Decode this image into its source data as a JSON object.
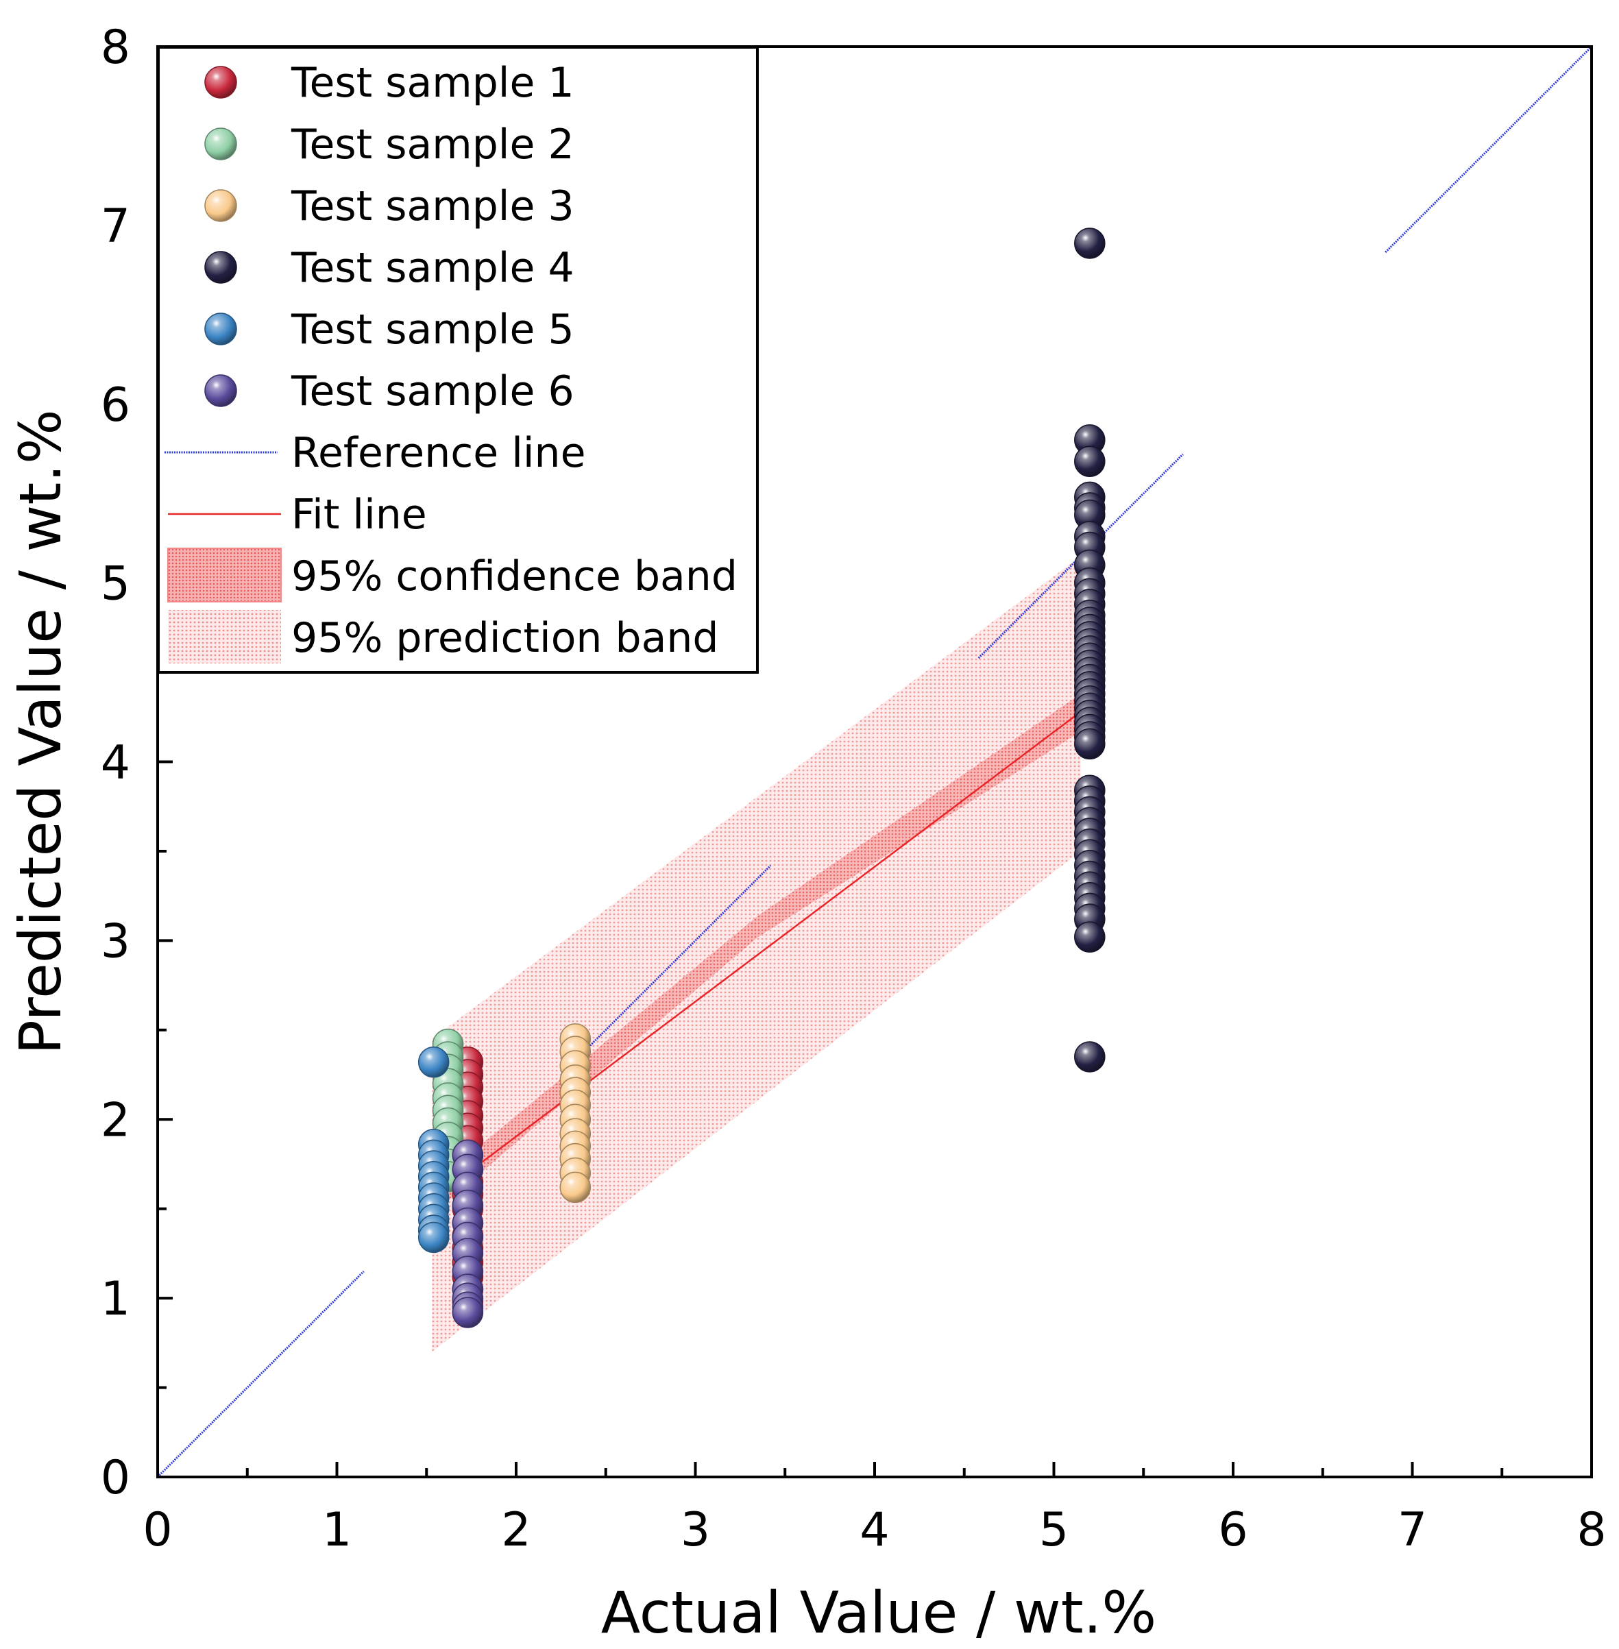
{
  "chart_data": {
    "type": "scatter",
    "title": "",
    "xlabel": "Actual Value / wt.%",
    "ylabel": "Predicted Value / wt.%",
    "xlim": [
      0,
      8
    ],
    "ylim": [
      0,
      8
    ],
    "xticks": [
      "0",
      "1",
      "2",
      "3",
      "4",
      "5",
      "6",
      "7",
      "8"
    ],
    "yticks": [
      "0",
      "1",
      "2",
      "3",
      "4",
      "5",
      "6",
      "7",
      "8"
    ],
    "grid": false,
    "legend_position": "top-left",
    "series": [
      {
        "name": "Test sample 1",
        "color": "#c8283c",
        "x": 1.73,
        "y": [
          2.32,
          2.25,
          2.18,
          2.1,
          2.02,
          1.95,
          1.88,
          1.8,
          1.72,
          1.65,
          1.58,
          1.5,
          1.42,
          1.35,
          1.28,
          1.2,
          1.12,
          1.05,
          0.98
        ]
      },
      {
        "name": "Test sample 2",
        "color": "#8fcfa6",
        "x": 1.62,
        "y": [
          2.42,
          2.35,
          2.28,
          2.2,
          2.12,
          2.05,
          1.98,
          1.9,
          1.82,
          1.75,
          1.68
        ]
      },
      {
        "name": "Test sample 3",
        "color": "#f9c98a",
        "x": 2.33,
        "y": [
          2.45,
          2.38,
          2.3,
          2.22,
          2.15,
          2.08,
          2.0,
          1.92,
          1.85,
          1.78,
          1.7,
          1.62
        ]
      },
      {
        "name": "Test sample 4",
        "color": "#232143",
        "x": 5.2,
        "y": [
          6.9,
          5.8,
          5.68,
          5.48,
          5.42,
          5.38,
          5.26,
          5.2,
          5.1,
          5.0,
          4.94,
          4.88,
          4.82,
          4.78,
          4.74,
          4.7,
          4.66,
          4.62,
          4.58,
          4.54,
          4.5,
          4.46,
          4.42,
          4.38,
          4.34,
          4.3,
          4.26,
          4.22,
          4.18,
          4.14,
          4.1,
          3.84,
          3.78,
          3.72,
          3.66,
          3.6,
          3.54,
          3.48,
          3.42,
          3.36,
          3.3,
          3.24,
          3.18,
          3.12,
          3.02,
          2.35
        ]
      },
      {
        "name": "Test sample 5",
        "color": "#3b84c4",
        "x": 1.54,
        "y": [
          2.32,
          1.86,
          1.8,
          1.74,
          1.68,
          1.62,
          1.56,
          1.5,
          1.44,
          1.38,
          1.34
        ]
      },
      {
        "name": "Test sample 6",
        "color": "#5a4a9c",
        "x": 1.73,
        "y": [
          1.8,
          1.72,
          1.62,
          1.52,
          1.42,
          1.34,
          1.25,
          1.15,
          1.05,
          1.0,
          0.95,
          0.92
        ]
      }
    ],
    "reference_line": {
      "name": "Reference line",
      "color": "#2f3bd8",
      "segments": [
        [
          [
            0,
            0
          ],
          [
            1.15,
            1.15
          ]
        ],
        [
          [
            2.28,
            2.28
          ],
          [
            3.42,
            3.42
          ]
        ],
        [
          [
            4.58,
            4.58
          ],
          [
            5.72,
            5.72
          ]
        ],
        [
          [
            6.85,
            6.85
          ],
          [
            8,
            8
          ]
        ]
      ]
    },
    "fit_line": {
      "name": "Fit line",
      "color": "#e8262a",
      "x": [
        1.53,
        5.15
      ],
      "y": [
        1.55,
        4.28
      ]
    },
    "confidence_band": {
      "name": "95% confidence band",
      "color": "#f08a8a",
      "x": [
        1.53,
        3.35,
        5.15
      ],
      "lower": [
        1.47,
        3.02,
        4.17
      ],
      "upper": [
        1.63,
        3.14,
        4.38
      ]
    },
    "prediction_band": {
      "name": "95% prediction  band",
      "color": "#f8b6b6",
      "x": [
        1.53,
        5.15
      ],
      "lower": [
        0.7,
        3.5
      ],
      "upper": [
        2.45,
        5.15
      ]
    }
  }
}
